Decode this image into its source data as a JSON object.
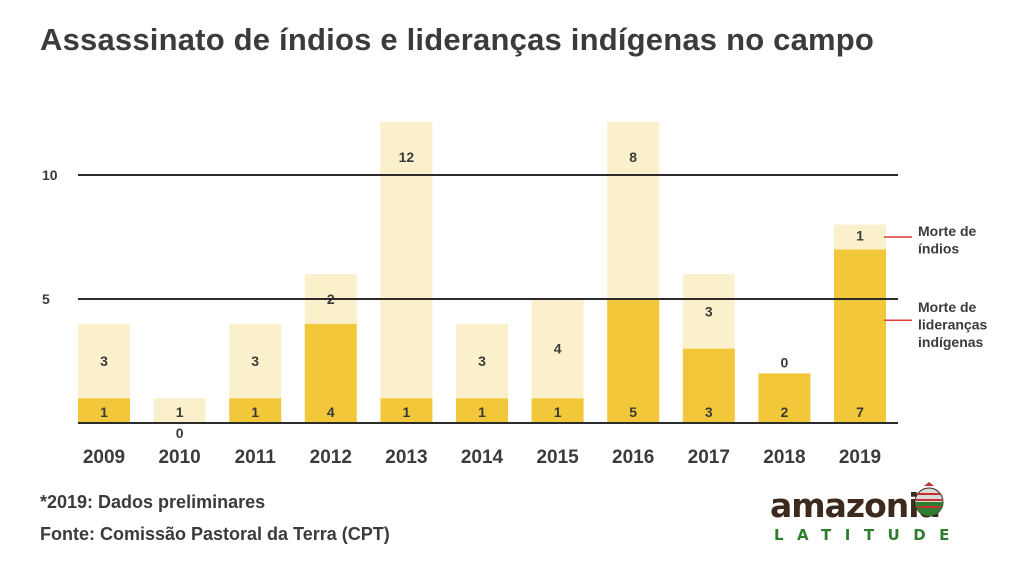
{
  "title": "Assassinato de índios e lideranças indígenas no campo",
  "footnote": "*2019: Dados preliminares",
  "source": "Fonte: Comissão Pastoral da Terra (CPT)",
  "logo": {
    "main": "amazonia",
    "sub": "LATITUDE"
  },
  "colors": {
    "leaders": "#f2c83a",
    "indios": "#fbf0cc",
    "gridline": "#2b2b2b",
    "annotation_line": "#e23b3b",
    "text": "#3b3b3b"
  },
  "chart_data": {
    "type": "bar",
    "stacked": true,
    "title": "Assassinato de índios e lideranças indígenas no campo",
    "categories": [
      "2009",
      "2010",
      "2011",
      "2012",
      "2013",
      "2014",
      "2015",
      "2016",
      "2017",
      "2018",
      "2019"
    ],
    "series": [
      {
        "name": "Morte de lideranças indígenas",
        "values": [
          1,
          0,
          1,
          4,
          1,
          1,
          1,
          5,
          3,
          2,
          7
        ]
      },
      {
        "name": "Morte de índios",
        "values": [
          3,
          1,
          3,
          2,
          12,
          3,
          4,
          8,
          3,
          0,
          1
        ]
      }
    ],
    "yticks": [
      5,
      10
    ],
    "ylim": [
      0,
      13
    ],
    "axis_clipped_categories": [
      "2013",
      "2016"
    ],
    "legend": [
      {
        "label_lines": [
          "Morte de",
          "índios"
        ],
        "series": "Morte de índios"
      },
      {
        "label_lines": [
          "Morte de",
          "lideranças",
          "indígenas"
        ],
        "series": "Morte de lideranças indígenas"
      }
    ],
    "xlabel": "",
    "ylabel": ""
  }
}
